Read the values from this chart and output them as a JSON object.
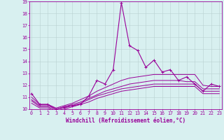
{
  "xlabel": "Windchill (Refroidissement éolien,°C)",
  "x": [
    0,
    1,
    2,
    3,
    4,
    5,
    6,
    7,
    8,
    9,
    10,
    11,
    12,
    13,
    14,
    15,
    16,
    17,
    18,
    19,
    20,
    21,
    22,
    23
  ],
  "line1": [
    11.3,
    10.4,
    10.4,
    10.0,
    10.2,
    10.3,
    10.4,
    11.1,
    12.4,
    12.1,
    13.3,
    18.9,
    15.3,
    14.9,
    13.5,
    14.1,
    13.1,
    13.3,
    12.4,
    12.7,
    12.1,
    11.5,
    12.1,
    11.9
  ],
  "line2": [
    11.0,
    10.4,
    10.4,
    10.1,
    10.3,
    10.5,
    10.8,
    11.1,
    11.5,
    11.8,
    12.1,
    12.4,
    12.6,
    12.7,
    12.8,
    12.9,
    12.9,
    12.9,
    12.9,
    12.9,
    12.9,
    12.0,
    11.9,
    11.9
  ],
  "line3": [
    10.8,
    10.3,
    10.3,
    10.0,
    10.2,
    10.4,
    10.6,
    10.9,
    11.2,
    11.5,
    11.7,
    11.9,
    12.1,
    12.2,
    12.3,
    12.4,
    12.4,
    12.4,
    12.4,
    12.3,
    12.3,
    11.7,
    11.7,
    11.7
  ],
  "line4": [
    10.7,
    10.2,
    10.2,
    9.9,
    10.1,
    10.3,
    10.5,
    10.8,
    11.1,
    11.3,
    11.5,
    11.7,
    11.8,
    11.9,
    12.0,
    12.1,
    12.1,
    12.1,
    12.1,
    12.1,
    12.1,
    11.5,
    11.5,
    11.5
  ],
  "line5": [
    10.5,
    10.1,
    10.1,
    9.8,
    10.0,
    10.2,
    10.4,
    10.6,
    10.9,
    11.1,
    11.3,
    11.5,
    11.6,
    11.7,
    11.8,
    11.9,
    11.9,
    11.9,
    11.9,
    11.9,
    11.9,
    11.3,
    11.3,
    11.3
  ],
  "color": "#990099",
  "bg_color": "#d8f0f0",
  "ylim": [
    10,
    19
  ],
  "yticks": [
    10,
    11,
    12,
    13,
    14,
    15,
    16,
    17,
    18,
    19
  ],
  "xticks": [
    0,
    1,
    2,
    3,
    4,
    5,
    6,
    7,
    8,
    9,
    10,
    11,
    12,
    13,
    14,
    15,
    16,
    17,
    18,
    19,
    20,
    21,
    22,
    23
  ],
  "grid_color": "#b8d0d0",
  "label_fontsize": 5.5,
  "tick_fontsize": 4.8
}
